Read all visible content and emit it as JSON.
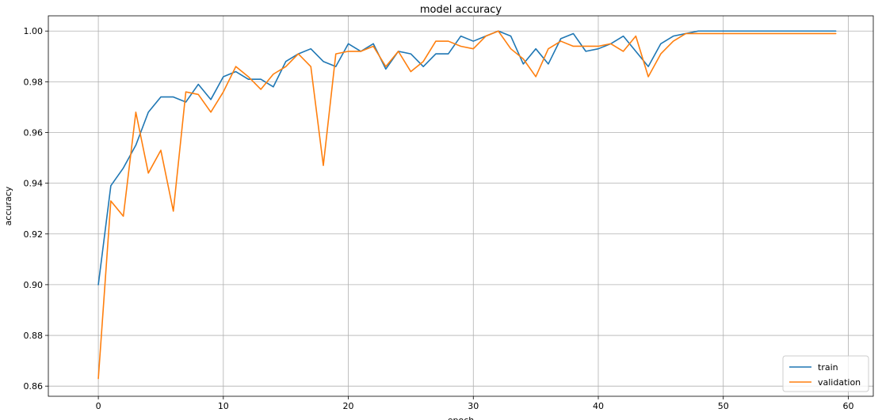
{
  "chart_data": {
    "type": "line",
    "title": "model accuracy",
    "xlabel": "epoch",
    "ylabel": "accuracy",
    "xlim": [
      -4,
      62
    ],
    "ylim": [
      0.856,
      1.006
    ],
    "x_ticks": [
      0,
      10,
      20,
      30,
      40,
      50,
      60
    ],
    "y_ticks": [
      0.86,
      0.88,
      0.9,
      0.92,
      0.94,
      0.96,
      0.98,
      1.0
    ],
    "y_tick_labels": [
      "0.86",
      "0.88",
      "0.90",
      "0.92",
      "0.94",
      "0.96",
      "0.98",
      "1.00"
    ],
    "grid": true,
    "legend_position": "bottom-right",
    "x": [
      0,
      1,
      2,
      3,
      4,
      5,
      6,
      7,
      8,
      9,
      10,
      11,
      12,
      13,
      14,
      15,
      16,
      17,
      18,
      19,
      20,
      21,
      22,
      23,
      24,
      25,
      26,
      27,
      28,
      29,
      30,
      31,
      32,
      33,
      34,
      35,
      36,
      37,
      38,
      39,
      40,
      41,
      42,
      43,
      44,
      45,
      46,
      47,
      48,
      49,
      50,
      51,
      52,
      53,
      54,
      55,
      56,
      57,
      58,
      59
    ],
    "series": [
      {
        "name": "train",
        "color": "#1f77b4",
        "values": [
          0.9,
          0.939,
          0.946,
          0.955,
          0.968,
          0.974,
          0.974,
          0.972,
          0.979,
          0.973,
          0.982,
          0.984,
          0.981,
          0.981,
          0.978,
          0.988,
          0.991,
          0.993,
          0.988,
          0.986,
          0.995,
          0.992,
          0.995,
          0.985,
          0.992,
          0.991,
          0.986,
          0.991,
          0.991,
          0.998,
          0.996,
          0.998,
          1.0,
          0.998,
          0.987,
          0.993,
          0.987,
          0.997,
          0.999,
          0.992,
          0.993,
          0.995,
          0.998,
          0.992,
          0.986,
          0.995,
          0.998,
          0.999,
          1.0,
          1.0,
          1.0,
          1.0,
          1.0,
          1.0,
          1.0,
          1.0,
          1.0,
          1.0,
          1.0,
          1.0
        ]
      },
      {
        "name": "validation",
        "color": "#ff7f0e",
        "values": [
          0.863,
          0.933,
          0.927,
          0.968,
          0.944,
          0.953,
          0.929,
          0.976,
          0.975,
          0.968,
          0.976,
          0.986,
          0.982,
          0.977,
          0.983,
          0.986,
          0.991,
          0.986,
          0.947,
          0.991,
          0.992,
          0.992,
          0.994,
          0.986,
          0.992,
          0.984,
          0.988,
          0.996,
          0.996,
          0.994,
          0.993,
          0.998,
          1.0,
          0.993,
          0.989,
          0.982,
          0.993,
          0.996,
          0.994,
          0.994,
          0.994,
          0.995,
          0.992,
          0.998,
          0.982,
          0.991,
          0.996,
          0.999,
          0.999,
          0.999,
          0.999,
          0.999,
          0.999,
          0.999,
          0.999,
          0.999,
          0.999,
          0.999,
          0.999,
          0.999
        ]
      }
    ]
  }
}
